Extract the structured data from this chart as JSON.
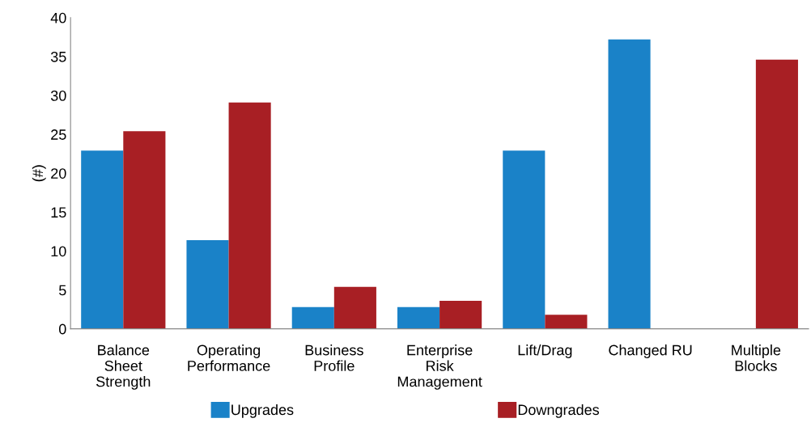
{
  "chart_data": {
    "type": "bar",
    "ylabel": "(#)",
    "categories": [
      "Balance\nSheet\nStrength",
      "Operating\nPerformance",
      "Business\nProfile",
      "Enterprise\nRisk\nManagement",
      "Lift/Drag",
      "Changed RU",
      "Multiple\nBlocks"
    ],
    "series": [
      {
        "name": "Upgrades",
        "color": "#1a82c8",
        "values": [
          22.9,
          11.4,
          2.8,
          2.8,
          22.9,
          37.2,
          0
        ]
      },
      {
        "name": "Downgrades",
        "color": "#a81f24",
        "values": [
          25.4,
          29.1,
          5.4,
          3.6,
          1.8,
          0,
          34.6
        ]
      }
    ],
    "ylim": [
      0,
      40
    ],
    "yticks": [
      0,
      5,
      10,
      15,
      20,
      25,
      30,
      35,
      40
    ],
    "grid": false,
    "legend": "bottom"
  }
}
